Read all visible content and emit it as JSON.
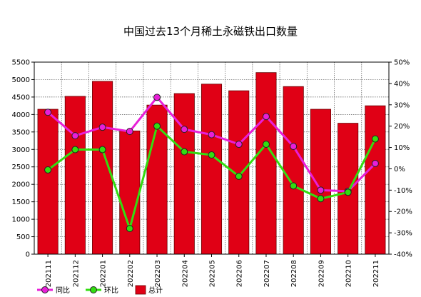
{
  "chart_data": {
    "type": "bar",
    "title": "中国过去13个月稀土永磁铁出口数量",
    "categories": [
      "202111",
      "202112",
      "202201",
      "202202",
      "202203",
      "202204",
      "202205",
      "202206",
      "202207",
      "202208",
      "202209",
      "202210",
      "202211"
    ],
    "ylim": [
      0,
      5500
    ],
    "yticks": [
      0,
      500,
      1000,
      1500,
      2000,
      2500,
      3000,
      3500,
      4000,
      4500,
      5000,
      5500
    ],
    "y2lim": [
      -40,
      50
    ],
    "y2ticks": [
      "-40%",
      "-30%",
      "-20%",
      "-10%",
      "0%",
      "10%",
      "20%",
      "30%",
      "40%",
      "50%"
    ],
    "grid": true,
    "legend_position": "bottom",
    "series": [
      {
        "name": "总计",
        "kind": "bar",
        "axis": "left",
        "color": "#e00015",
        "values": [
          4150,
          4520,
          4950,
          3530,
          4270,
          4600,
          4870,
          4680,
          5200,
          4800,
          4150,
          3750,
          4250
        ]
      },
      {
        "name": "同比",
        "kind": "line",
        "axis": "right",
        "color": "#e81fd8",
        "values": [
          26.5,
          15.5,
          19.5,
          17.5,
          33.5,
          18.5,
          16,
          11.5,
          24.5,
          10.5,
          -10,
          -10.5,
          2.5
        ]
      },
      {
        "name": "环比",
        "kind": "line",
        "axis": "right",
        "color": "#33dd11",
        "values": [
          -0.5,
          9,
          9,
          -28,
          20,
          8,
          6.5,
          -3.5,
          11.5,
          -8,
          -14,
          -11,
          14
        ]
      }
    ],
    "legend": [
      "同比",
      "环比",
      "总计"
    ]
  }
}
